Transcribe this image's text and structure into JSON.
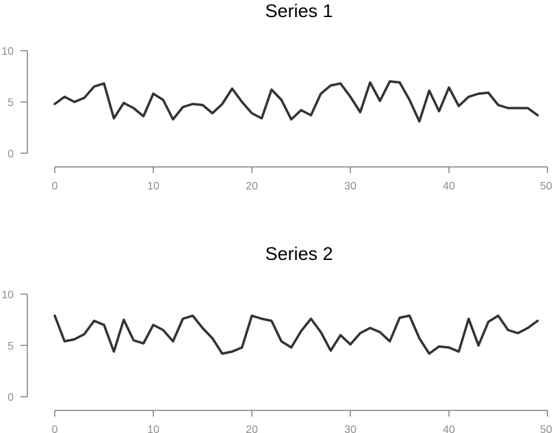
{
  "colors": {
    "line": "#333333",
    "axis": "#808080",
    "tick_text": "#8c8c8c",
    "title_text": "#000000"
  },
  "chart_data": [
    {
      "type": "line",
      "title": "Series 1",
      "xlabel": "",
      "ylabel": "",
      "xlim": [
        0,
        50
      ],
      "ylim": [
        0,
        10
      ],
      "x_ticks": [
        0,
        10,
        20,
        30,
        40,
        50
      ],
      "y_ticks": [
        0,
        5,
        10
      ],
      "x_tick_labels": [
        "0",
        "10",
        "20",
        "30",
        "40",
        "50"
      ],
      "y_tick_labels": [
        "0",
        "5",
        "10"
      ],
      "series": [
        {
          "name": "Series 1",
          "x": [
            0,
            1,
            2,
            3,
            4,
            5,
            6,
            7,
            8,
            9,
            10,
            11,
            12,
            13,
            14,
            15,
            16,
            17,
            18,
            19,
            20,
            21,
            22,
            23,
            24,
            25,
            26,
            27,
            28,
            29,
            30,
            31,
            32,
            33,
            34,
            35,
            36,
            37,
            38,
            39,
            40,
            41,
            42,
            43,
            44,
            45,
            46,
            47,
            48,
            49
          ],
          "values": [
            4.8,
            5.5,
            5.0,
            5.4,
            6.5,
            6.8,
            3.4,
            4.9,
            4.4,
            3.6,
            5.8,
            5.2,
            3.3,
            4.5,
            4.8,
            4.7,
            3.9,
            4.8,
            6.3,
            5.0,
            3.9,
            3.4,
            6.2,
            5.2,
            3.3,
            4.2,
            3.7,
            5.8,
            6.6,
            6.8,
            5.5,
            4.0,
            6.9,
            5.1,
            7.0,
            6.9,
            5.2,
            3.1,
            6.1,
            4.1,
            6.4,
            4.6,
            5.5,
            5.8,
            5.9,
            4.7,
            4.4,
            4.4,
            4.4,
            3.7
          ]
        }
      ]
    },
    {
      "type": "line",
      "title": "Series 2",
      "xlabel": "",
      "ylabel": "",
      "xlim": [
        0,
        50
      ],
      "ylim": [
        0,
        10
      ],
      "x_ticks": [
        0,
        10,
        20,
        30,
        40,
        50
      ],
      "y_ticks": [
        0,
        5,
        10
      ],
      "x_tick_labels": [
        "0",
        "10",
        "20",
        "30",
        "40",
        "50"
      ],
      "y_tick_labels": [
        "0",
        "5",
        "10"
      ],
      "series": [
        {
          "name": "Series 2",
          "x": [
            0,
            1,
            2,
            3,
            4,
            5,
            6,
            7,
            8,
            9,
            10,
            11,
            12,
            13,
            14,
            15,
            16,
            17,
            18,
            19,
            20,
            21,
            22,
            23,
            24,
            25,
            26,
            27,
            28,
            29,
            30,
            31,
            32,
            33,
            34,
            35,
            36,
            37,
            38,
            39,
            40,
            41,
            42,
            43,
            44,
            45,
            46,
            47,
            48,
            49
          ],
          "values": [
            7.9,
            5.4,
            5.6,
            6.1,
            7.4,
            7.0,
            4.4,
            7.5,
            5.5,
            5.2,
            7.0,
            6.5,
            5.4,
            7.6,
            7.9,
            6.7,
            5.7,
            4.2,
            4.4,
            4.8,
            7.9,
            7.6,
            7.4,
            5.4,
            4.8,
            6.4,
            7.6,
            6.3,
            4.5,
            6.0,
            5.1,
            6.2,
            6.7,
            6.3,
            5.4,
            7.7,
            7.9,
            5.7,
            4.2,
            4.9,
            4.8,
            4.4,
            7.6,
            5.0,
            7.3,
            7.9,
            6.5,
            6.2,
            6.7,
            7.4
          ]
        }
      ]
    }
  ]
}
